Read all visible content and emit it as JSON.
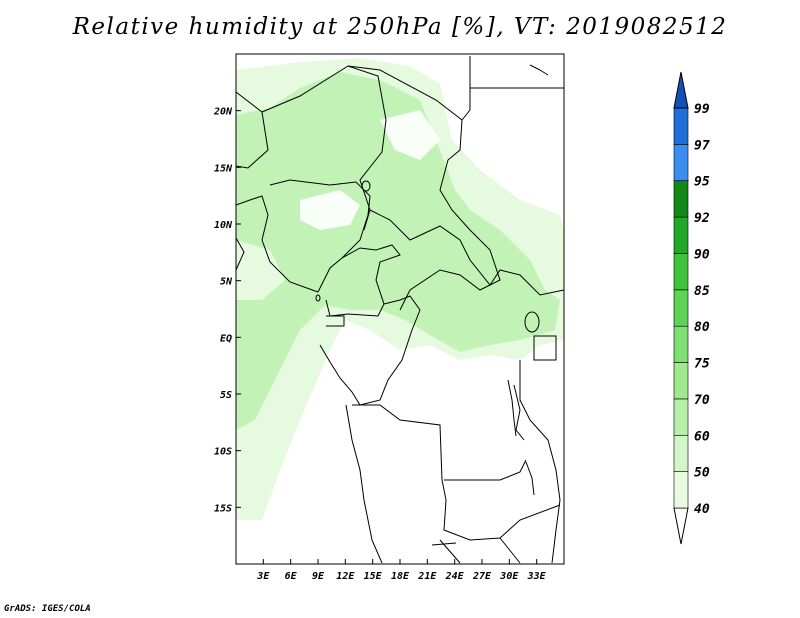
{
  "title": "Relative humidity at 250hPa [%], VT: 2019082512",
  "credit": "GrADS: IGES/COLA",
  "map": {
    "lon_range": [
      0,
      36
    ],
    "lat_range": [
      -20,
      25
    ],
    "lon_ticks": [
      {
        "value": 3,
        "label": "3E"
      },
      {
        "value": 6,
        "label": "6E"
      },
      {
        "value": 9,
        "label": "9E"
      },
      {
        "value": 12,
        "label": "12E"
      },
      {
        "value": 15,
        "label": "15E"
      },
      {
        "value": 18,
        "label": "18E"
      },
      {
        "value": 21,
        "label": "21E"
      },
      {
        "value": 24,
        "label": "24E"
      },
      {
        "value": 27,
        "label": "27E"
      },
      {
        "value": 30,
        "label": "30E"
      },
      {
        "value": 33,
        "label": "33E"
      }
    ],
    "lat_ticks": [
      {
        "value": 20,
        "label": "20N"
      },
      {
        "value": 15,
        "label": "15N"
      },
      {
        "value": 10,
        "label": "10N"
      },
      {
        "value": 5,
        "label": "5N"
      },
      {
        "value": 0,
        "label": "EQ"
      },
      {
        "value": -5,
        "label": "5S"
      },
      {
        "value": -10,
        "label": "10S"
      },
      {
        "value": -15,
        "label": "15S"
      }
    ]
  },
  "legend": {
    "labels": [
      "40",
      "50",
      "60",
      "70",
      "75",
      "80",
      "85",
      "90",
      "92",
      "95",
      "97",
      "99"
    ],
    "colors": [
      "#ffffff",
      "#e8fbe2",
      "#d2f6c8",
      "#b8f0aa",
      "#9fe98e",
      "#7ee072",
      "#5dd455",
      "#3fc43c",
      "#21a827",
      "#138a18",
      "#3a8ef0",
      "#1e6fd8",
      "#1450b8"
    ]
  },
  "colors": {
    "humid_light": "#e6fae0",
    "humid_mid": "#c2f2b6",
    "border": "#000000"
  }
}
